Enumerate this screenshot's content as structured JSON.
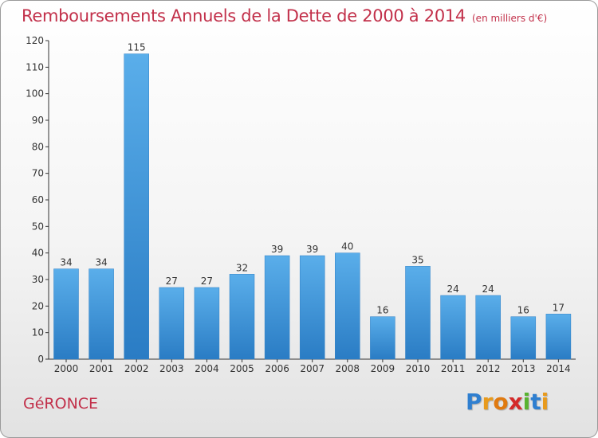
{
  "chart_data": {
    "type": "bar",
    "title": "Remboursements Annuels de la Dette de 2000 à 2014",
    "unit": "(en milliers d'€)",
    "categories": [
      "2000",
      "2001",
      "2002",
      "2003",
      "2004",
      "2005",
      "2006",
      "2007",
      "2008",
      "2009",
      "2010",
      "2011",
      "2012",
      "2013",
      "2014"
    ],
    "values": [
      34,
      34,
      115,
      27,
      27,
      32,
      39,
      39,
      40,
      16,
      35,
      24,
      24,
      16,
      17
    ],
    "ylim": [
      0,
      120
    ],
    "yticks": [
      0,
      10,
      20,
      30,
      40,
      50,
      60,
      70,
      80,
      90,
      100,
      110,
      120
    ],
    "grid": false,
    "bar_color": "#3a8fd9"
  },
  "commune": "GéRONCE",
  "logo": {
    "letters": [
      "P",
      "r",
      "o",
      "x",
      "i",
      "t",
      "i"
    ],
    "colors": [
      "#2f7fd0",
      "#e89a1c",
      "#e07a10",
      "#d42a2a",
      "#58b330",
      "#2f7fd0",
      "#e89a1c"
    ]
  }
}
